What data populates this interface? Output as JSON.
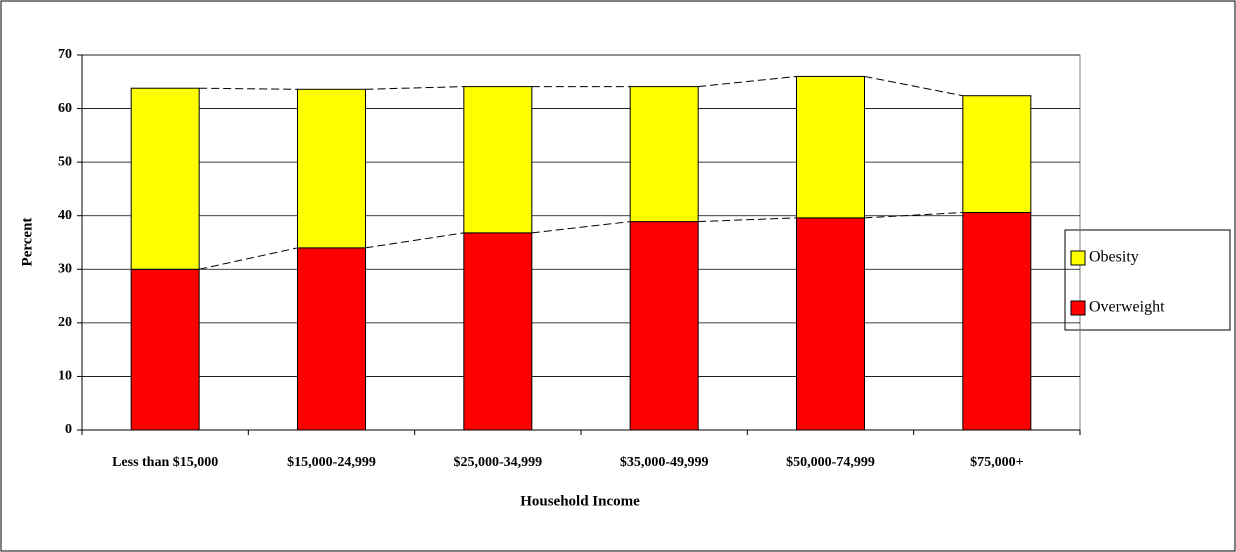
{
  "chart_data": {
    "type": "stacked-bar",
    "x_label": "Household Income",
    "y_label": "Percent",
    "categories": [
      "Less than $15,000",
      "$15,000-24,999",
      "$25,000-34,999",
      "$35,000-49,999",
      "$50,000-74,999",
      "$75,000+"
    ],
    "series": [
      {
        "name": "Overweight",
        "color": "#ff0000",
        "values": [
          30,
          34,
          36.8,
          38.9,
          39.6,
          40.6
        ]
      },
      {
        "name": "Obesity",
        "color": "#ffff00",
        "values": [
          33.8,
          29.6,
          27.3,
          25.2,
          26.4,
          21.8
        ]
      }
    ],
    "ylim": [
      0,
      70
    ],
    "yticks": [
      0,
      10,
      20,
      30,
      40,
      50,
      60,
      70
    ],
    "grid": true,
    "legend": "right"
  }
}
